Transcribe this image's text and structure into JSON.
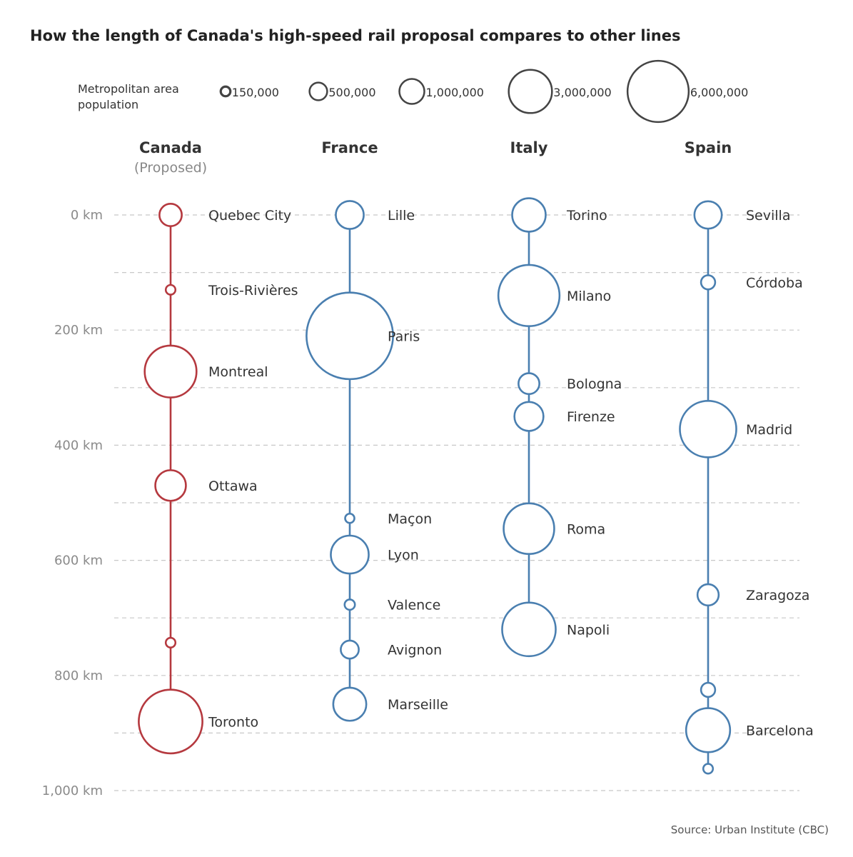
{
  "title": "How the length of Canada's high-speed rail proposal compares to other lines",
  "source": "Source: Urban Institute (CBC)",
  "colors": {
    "canada": "#b5393f",
    "other": "#4a7fb0",
    "legend": "#444444",
    "grid": "#c8c8c8"
  },
  "chart_data": {
    "type": "scatter",
    "y_axis": {
      "unit": "km",
      "range": [
        0,
        1000
      ],
      "ticks": [
        {
          "value": 0,
          "label": "0 km"
        },
        {
          "value": 200,
          "label": "200 km"
        },
        {
          "value": 400,
          "label": "400 km"
        },
        {
          "value": 600,
          "label": "600 km"
        },
        {
          "value": 800,
          "label": "800 km"
        },
        {
          "value": 1000,
          "label": "1,000 km"
        }
      ],
      "gridlines_every": 100
    },
    "legend": {
      "title_lines": [
        "Metropolitan area",
        "population"
      ],
      "items": [
        {
          "population": 150000,
          "label": "150,000"
        },
        {
          "population": 500000,
          "label": "500,000"
        },
        {
          "population": 1000000,
          "label": "1,000,000"
        },
        {
          "population": 3000000,
          "label": "3,000,000"
        },
        {
          "population": 6000000,
          "label": "6,000,000"
        }
      ]
    },
    "series": [
      {
        "name": "Canada",
        "subtitle": "(Proposed)",
        "color_key": "canada",
        "stops": [
          {
            "city": "Quebec City",
            "km": 0,
            "population": 800000
          },
          {
            "city": "Trois-Rivières",
            "km": 130,
            "population": 150000
          },
          {
            "city": "Montreal",
            "km": 272,
            "population": 4300000
          },
          {
            "city": "Ottawa",
            "km": 470,
            "population": 1500000
          },
          {
            "city": "",
            "km": 743,
            "population": 150000
          },
          {
            "city": "Toronto",
            "km": 880,
            "population": 6500000
          }
        ]
      },
      {
        "name": "France",
        "subtitle": "",
        "color_key": "other",
        "stops": [
          {
            "city": "Lille",
            "km": 0,
            "population": 1250000
          },
          {
            "city": "Paris",
            "km": 210,
            "population": 12000000
          },
          {
            "city": "Maçon",
            "km": 527,
            "population": 100000
          },
          {
            "city": "Lyon",
            "km": 590,
            "population": 2300000
          },
          {
            "city": "Valence",
            "km": 677,
            "population": 170000
          },
          {
            "city": "Avignon",
            "km": 755,
            "population": 520000
          },
          {
            "city": "Marseille",
            "km": 850,
            "population": 1750000
          }
        ]
      },
      {
        "name": "Italy",
        "subtitle": "",
        "color_key": "other",
        "stops": [
          {
            "city": "Torino",
            "km": 0,
            "population": 1800000
          },
          {
            "city": "Milano",
            "km": 140,
            "population": 6000000
          },
          {
            "city": "Bologna",
            "km": 293,
            "population": 700000
          },
          {
            "city": "Firenze",
            "km": 350,
            "population": 1350000
          },
          {
            "city": "Roma",
            "km": 545,
            "population": 4100000
          },
          {
            "city": "Napoli",
            "km": 720,
            "population": 4600000
          }
        ]
      },
      {
        "name": "Spain",
        "subtitle": "",
        "color_key": "other",
        "stops": [
          {
            "city": "Sevilla",
            "km": 0,
            "population": 1200000
          },
          {
            "city": "Córdoba",
            "km": 117,
            "population": 320000
          },
          {
            "city": "Madrid",
            "km": 372,
            "population": 5100000
          },
          {
            "city": "Zaragoza",
            "km": 660,
            "population": 720000
          },
          {
            "city": "",
            "km": 825,
            "population": 320000
          },
          {
            "city": "Barcelona",
            "km": 895,
            "population": 3100000
          },
          {
            "city": "",
            "km": 962,
            "population": 150000
          }
        ]
      }
    ]
  }
}
